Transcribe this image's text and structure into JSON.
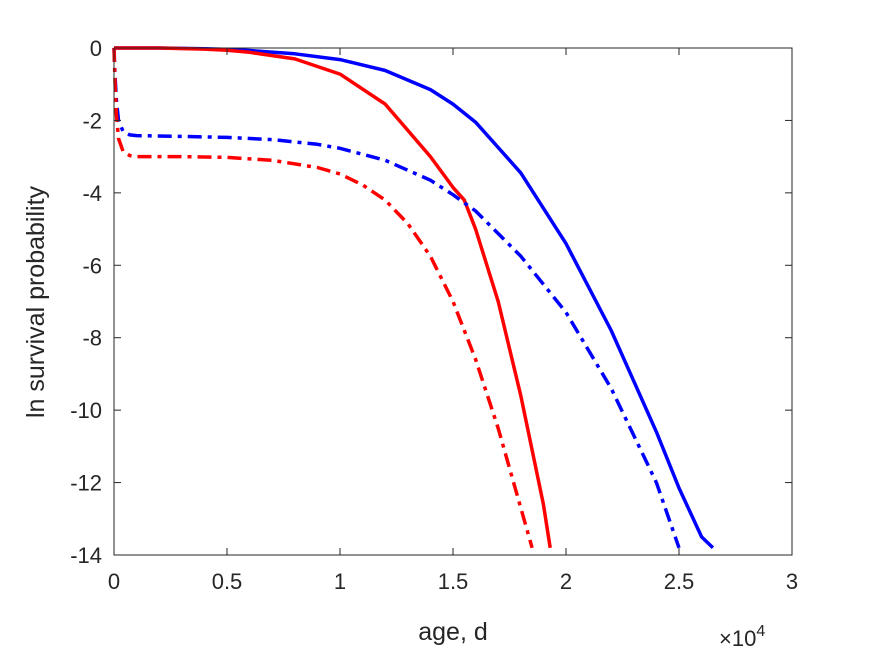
{
  "chart_data": {
    "type": "line",
    "xlabel": "age, d",
    "ylabel": "ln survival probability",
    "x_exponent_label": "×10",
    "x_exponent_power": "4",
    "xlim": [
      0,
      3
    ],
    "ylim": [
      -14,
      0
    ],
    "xticks": [
      0,
      0.5,
      1,
      1.5,
      2,
      2.5,
      3
    ],
    "yticks": [
      0,
      -2,
      -4,
      -6,
      -8,
      -10,
      -12,
      -14
    ],
    "xtick_labels": [
      "0",
      "0.5",
      "1",
      "1.5",
      "2",
      "2.5",
      "3"
    ],
    "ytick_labels": [
      "0",
      "-2",
      "-4",
      "-6",
      "-8",
      "-10",
      "-12",
      "-14"
    ],
    "grid": false,
    "series": [
      {
        "color": "#0000ff",
        "style": "solid",
        "x": [
          0,
          0.2,
          0.4,
          0.5,
          0.6,
          0.8,
          1.0,
          1.2,
          1.4,
          1.5,
          1.6,
          1.8,
          2.0,
          2.2,
          2.4,
          2.5,
          2.6,
          2.65
        ],
        "y": [
          0,
          0,
          -0.02,
          -0.04,
          -0.07,
          -0.16,
          -0.32,
          -0.62,
          -1.15,
          -1.55,
          -2.05,
          -3.45,
          -5.4,
          -7.8,
          -10.6,
          -12.15,
          -13.5,
          -13.8
        ]
      },
      {
        "color": "#ff0000",
        "style": "solid",
        "x": [
          0,
          0.2,
          0.4,
          0.5,
          0.6,
          0.8,
          1.0,
          1.2,
          1.4,
          1.5,
          1.55,
          1.6,
          1.7,
          1.8,
          1.9,
          1.93
        ],
        "y": [
          0,
          0,
          -0.03,
          -0.06,
          -0.12,
          -0.3,
          -0.72,
          -1.55,
          -3.0,
          -3.85,
          -4.2,
          -5.0,
          -7.0,
          -9.6,
          -12.6,
          -13.8
        ]
      },
      {
        "color": "#0000ff",
        "style": "dashdot",
        "x": [
          0,
          0.005,
          0.01,
          0.02,
          0.04,
          0.07,
          0.1,
          0.3,
          0.5,
          0.7,
          0.9,
          1.0,
          1.2,
          1.4,
          1.5,
          1.6,
          1.8,
          2.0,
          2.2,
          2.4,
          2.5
        ],
        "y": [
          0,
          -0.8,
          -1.4,
          -2.0,
          -2.3,
          -2.4,
          -2.42,
          -2.44,
          -2.47,
          -2.53,
          -2.66,
          -2.77,
          -3.1,
          -3.65,
          -4.05,
          -4.5,
          -5.75,
          -7.3,
          -9.4,
          -12.0,
          -13.8
        ]
      },
      {
        "color": "#ff0000",
        "style": "dashdot",
        "x": [
          0,
          0.005,
          0.01,
          0.02,
          0.04,
          0.07,
          0.1,
          0.3,
          0.5,
          0.7,
          0.9,
          1.0,
          1.1,
          1.2,
          1.3,
          1.4,
          1.5,
          1.6,
          1.7,
          1.8,
          1.85
        ],
        "y": [
          0,
          -1.0,
          -1.8,
          -2.5,
          -2.85,
          -2.97,
          -3.0,
          -3.0,
          -3.02,
          -3.1,
          -3.3,
          -3.48,
          -3.78,
          -4.2,
          -4.85,
          -5.75,
          -7.0,
          -8.6,
          -10.5,
          -12.7,
          -13.8
        ]
      }
    ]
  }
}
